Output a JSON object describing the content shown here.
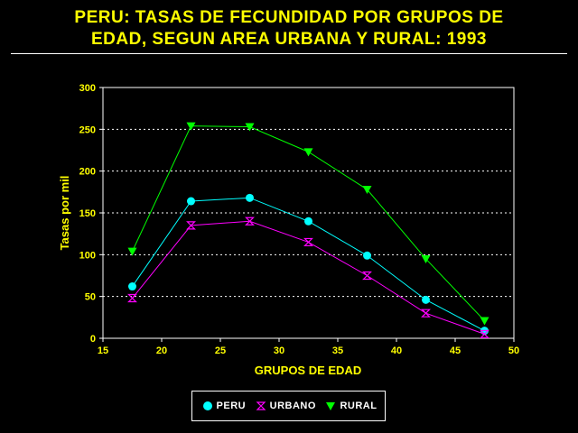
{
  "title_lines": [
    "PERU: TASAS DE FECUNDIDAD POR GRUPOS DE",
    "EDAD, SEGUN AREA URBANA Y RURAL: 1993"
  ],
  "chart_data": {
    "type": "line",
    "xlabel": "GRUPOS DE EDAD",
    "ylabel": "Tasas por mil",
    "xlim": [
      15,
      50
    ],
    "ylim": [
      0,
      300
    ],
    "xticks": [
      15,
      20,
      25,
      30,
      35,
      40,
      45,
      50
    ],
    "yticks": [
      0,
      50,
      100,
      150,
      200,
      250,
      300
    ],
    "grid": "horizontal-dotted",
    "legend_position": "bottom",
    "x": [
      17.5,
      22.5,
      27.5,
      32.5,
      37.5,
      42.5,
      47.5
    ],
    "series": [
      {
        "name": "PERU",
        "color": "#00ffff",
        "marker": "circle",
        "values": [
          62,
          164,
          168,
          140,
          99,
          46,
          9
        ]
      },
      {
        "name": "URBANO",
        "color": "#ff00ff",
        "marker": "hourglass",
        "values": [
          48,
          135,
          140,
          115,
          75,
          30,
          5
        ]
      },
      {
        "name": "RURAL",
        "color": "#00ff00",
        "marker": "triangle-down",
        "values": [
          104,
          254,
          253,
          223,
          178,
          95,
          21
        ]
      }
    ]
  },
  "colors": {
    "background": "#000000",
    "title": "#ffff00",
    "axis_labels": "#ffff00",
    "frame": "#ffffff",
    "grid": "#ffffff"
  }
}
